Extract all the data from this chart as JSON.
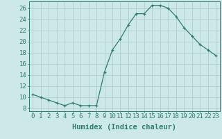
{
  "x": [
    0,
    1,
    2,
    3,
    4,
    5,
    6,
    7,
    8,
    9,
    10,
    11,
    12,
    13,
    14,
    15,
    16,
    17,
    18,
    19,
    20,
    21,
    22,
    23
  ],
  "y": [
    10.5,
    10.0,
    9.5,
    9.0,
    8.5,
    9.0,
    8.5,
    8.5,
    8.5,
    14.5,
    18.5,
    20.5,
    23.0,
    25.0,
    25.0,
    26.5,
    26.5,
    26.0,
    24.5,
    22.5,
    21.0,
    19.5,
    18.5,
    17.5
  ],
  "line_color": "#2e7d6e",
  "marker": "+",
  "bg_color": "#cce8e8",
  "grid_color": "#b0cece",
  "xlabel": "Humidex (Indice chaleur)",
  "ylabel_ticks": [
    8,
    10,
    12,
    14,
    16,
    18,
    20,
    22,
    24,
    26
  ],
  "xlim": [
    -0.5,
    23.5
  ],
  "ylim": [
    7.5,
    27.2
  ],
  "xlabel_fontsize": 7.5,
  "tick_fontsize": 6.5,
  "xtick_labels": [
    "0",
    "1",
    "2",
    "3",
    "4",
    "5",
    "6",
    "7",
    "8",
    "9",
    "1011",
    "1213",
    "1415",
    "1617",
    "1819",
    "2021",
    "2223"
  ]
}
